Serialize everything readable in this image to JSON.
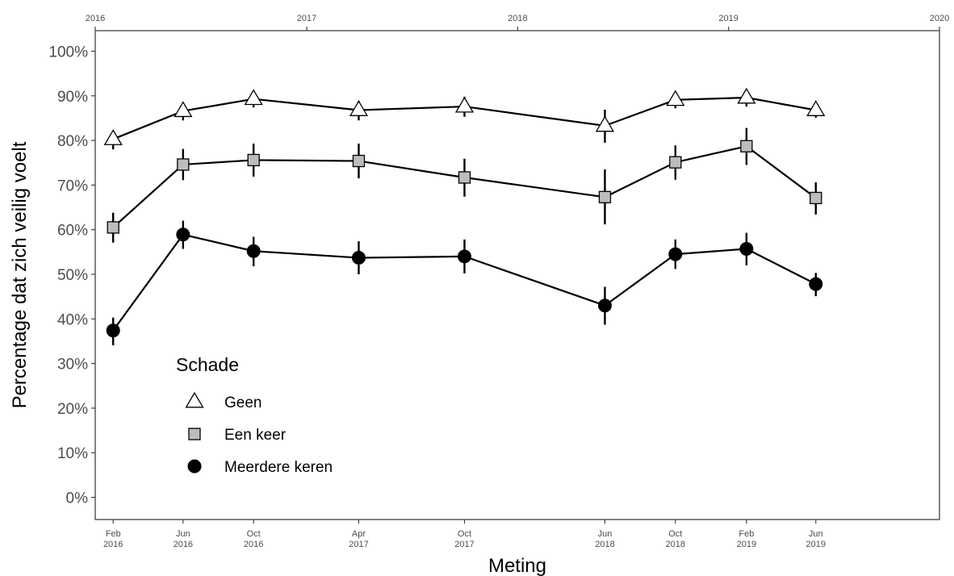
{
  "chart_data": {
    "type": "line",
    "xlabel": "Meting",
    "ylabel": "Percentage dat zich veilig voelt",
    "ylim": [
      0,
      100
    ],
    "y_ticks": [
      "0%",
      "10%",
      "20%",
      "30%",
      "40%",
      "50%",
      "60%",
      "70%",
      "80%",
      "90%",
      "100%"
    ],
    "x_range": [
      "2016-01-01",
      "2020-01-01"
    ],
    "top_axis_ticks": [
      "2016",
      "2017",
      "2018",
      "2019",
      "2020"
    ],
    "x": [
      "2016-02",
      "2016-06",
      "2016-10",
      "2017-04",
      "2017-10",
      "2018-06",
      "2018-10",
      "2019-02",
      "2019-06"
    ],
    "x_tick_labels": [
      [
        "Feb",
        "2016"
      ],
      [
        "Jun",
        "2016"
      ],
      [
        "Oct",
        "2016"
      ],
      [
        "Apr",
        "2017"
      ],
      [
        "Oct",
        "2017"
      ],
      [
        "Jun",
        "2018"
      ],
      [
        "Oct",
        "2018"
      ],
      [
        "Feb",
        "2019"
      ],
      [
        "Jun",
        "2019"
      ]
    ],
    "grid": false,
    "legend": {
      "title": "Schade",
      "position": "bottom-left inside"
    },
    "series": [
      {
        "name": "Geen",
        "marker": "triangle",
        "marker_color": "#ffffff",
        "values": [
          80.3,
          86.6,
          89.3,
          86.8,
          87.6,
          83.3,
          89.1,
          89.6,
          86.8
        ],
        "error_low": [
          78.0,
          84.5,
          87.4,
          84.5,
          85.3,
          79.5,
          87.2,
          87.6,
          85.1
        ],
        "error_high": [
          82.2,
          88.4,
          91.1,
          88.9,
          89.8,
          86.9,
          90.8,
          91.4,
          88.4
        ]
      },
      {
        "name": "Een keer",
        "marker": "square",
        "marker_color": "#bdbdbd",
        "values": [
          60.5,
          74.6,
          75.6,
          75.4,
          71.7,
          67.3,
          75.1,
          78.7,
          67.1
        ],
        "error_low": [
          57.1,
          71.1,
          71.9,
          71.5,
          67.4,
          61.2,
          71.2,
          74.5,
          63.4
        ],
        "error_high": [
          63.8,
          78.1,
          79.3,
          79.3,
          75.9,
          73.5,
          78.9,
          82.8,
          70.6
        ]
      },
      {
        "name": "Meerdere keren",
        "marker": "circle",
        "marker_color": "#000000",
        "values": [
          37.4,
          58.9,
          55.2,
          53.7,
          54.0,
          43.0,
          54.5,
          55.7,
          47.8
        ],
        "error_low": [
          34.1,
          55.7,
          51.8,
          50.0,
          50.2,
          38.7,
          51.2,
          52.0,
          45.1
        ],
        "error_high": [
          40.3,
          62.0,
          58.4,
          57.4,
          57.8,
          47.2,
          57.8,
          59.3,
          50.3
        ]
      }
    ]
  }
}
